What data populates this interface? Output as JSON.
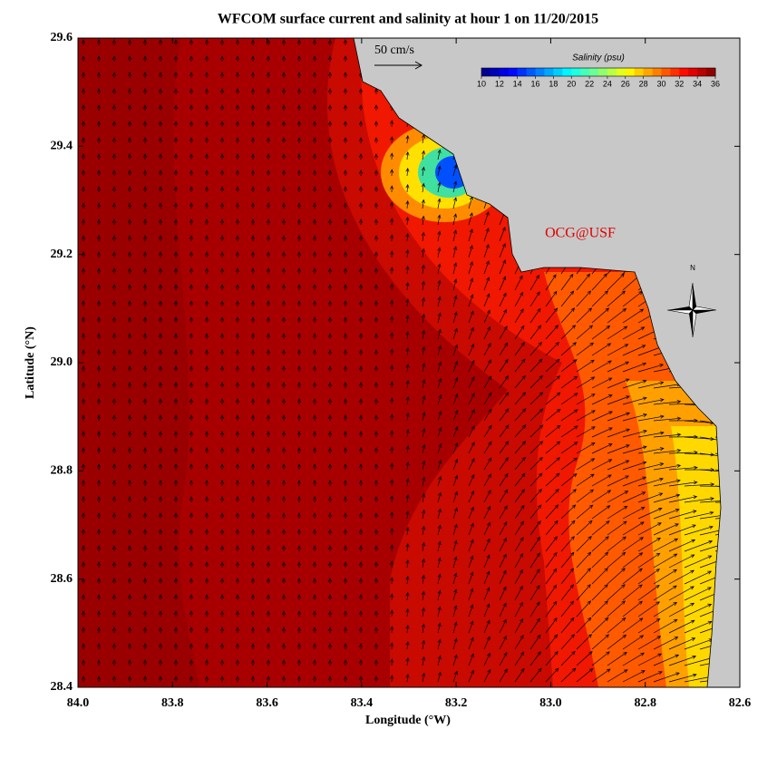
{
  "title": "WFCOM surface current and salinity at hour 1 on 11/20/2015",
  "x_axis": {
    "label": "Longitude (°W)",
    "lim": [
      84.0,
      82.6
    ],
    "ticks": [
      {
        "value": 84.0,
        "label": "84.0"
      },
      {
        "value": 83.8,
        "label": "83.8"
      },
      {
        "value": 83.6,
        "label": "83.6"
      },
      {
        "value": 83.4,
        "label": "83.4"
      },
      {
        "value": 83.2,
        "label": "83.2"
      },
      {
        "value": 83.0,
        "label": "83.0"
      },
      {
        "value": 82.8,
        "label": "82.8"
      },
      {
        "value": 82.6,
        "label": "82.6"
      }
    ]
  },
  "y_axis": {
    "label": "Latitude (°N)",
    "lim": [
      28.4,
      29.6
    ],
    "ticks": [
      {
        "value": 28.4,
        "label": "28.4"
      },
      {
        "value": 28.6,
        "label": "28.6"
      },
      {
        "value": 28.8,
        "label": "28.8"
      },
      {
        "value": 29.0,
        "label": "29.0"
      },
      {
        "value": 29.2,
        "label": "29.2"
      },
      {
        "value": 29.4,
        "label": "29.4"
      },
      {
        "value": 29.6,
        "label": "29.6"
      }
    ]
  },
  "scale_arrow": {
    "label": "50 cm/s"
  },
  "colorbar": {
    "title": "Salinity (psu)",
    "lim": [
      10,
      36
    ],
    "ticks": [
      10,
      12,
      14,
      16,
      18,
      20,
      22,
      24,
      26,
      28,
      30,
      32,
      34,
      36
    ]
  },
  "credit": "OCG@USF",
  "compass": "N"
}
